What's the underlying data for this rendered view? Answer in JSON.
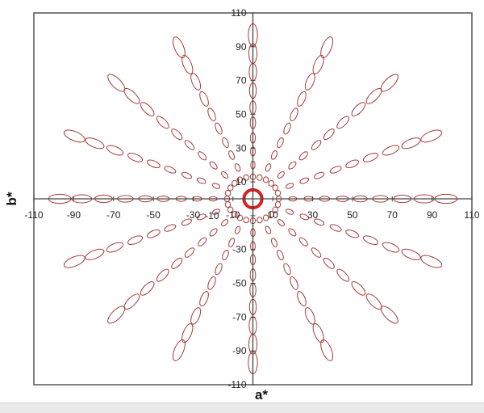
{
  "chart_data": {
    "type": "scatter",
    "title": "",
    "xlabel": "a*",
    "ylabel": "b*",
    "xlim": [
      -110,
      110
    ],
    "ylim": [
      -110,
      110
    ],
    "x_ticks": [
      -110,
      -90,
      -70,
      -50,
      -30,
      -10,
      10,
      30,
      50,
      70,
      90,
      110
    ],
    "y_ticks": [
      110,
      90,
      70,
      50,
      30,
      10,
      -10,
      -30,
      -50,
      -70,
      -90,
      -110
    ],
    "grid": false,
    "legend": "none",
    "ellipse_color": "#a83a3a",
    "center_ring_color": "#d42020",
    "hue_angles_deg": [
      0,
      22.5,
      45,
      67.5,
      90,
      112.5,
      135,
      157.5,
      180,
      202.5,
      225,
      247.5,
      270,
      292.5,
      315,
      337.5
    ],
    "chroma_levels": [
      20,
      28,
      36,
      45,
      54,
      64,
      75,
      86,
      97
    ],
    "semi_major": [
      2.0,
      2.3,
      2.6,
      3.0,
      3.4,
      3.9,
      4.4,
      5.0,
      5.6
    ],
    "semi_minor": [
      1.3,
      1.4,
      1.5,
      1.6,
      1.8,
      2.0,
      2.2,
      2.4,
      2.7
    ],
    "inner_ring": {
      "chroma": 13,
      "count": 24,
      "radius": 1.3
    },
    "center_ring": {
      "chroma": 0,
      "radius": 4.5
    }
  }
}
